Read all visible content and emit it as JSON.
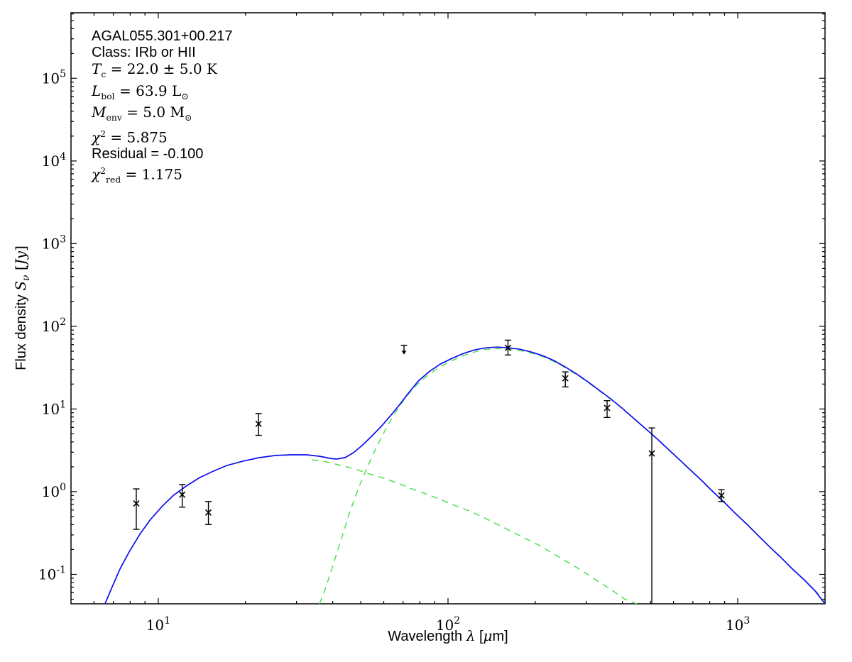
{
  "chart_data": {
    "type": "line",
    "title": "",
    "x_scale": "log",
    "y_scale": "log",
    "xlim": [
      5,
      2000
    ],
    "ylim": [
      0.044,
      620000
    ],
    "grid": false,
    "legend": "none",
    "annotation": {
      "lines": [
        {
          "text": "AGAL055.301+00.217",
          "style": "sans"
        },
        {
          "text": "Class: IRb or HII",
          "style": "sans"
        },
        {
          "text": "*T*_{c} = 22.0 ± 5.0 K",
          "style": "math"
        },
        {
          "text": "*L*_{bol} = 63.9 L_{⊙}",
          "style": "math"
        },
        {
          "text": "*M*_{env} = 5.0 M_{⊙}",
          "style": "math"
        },
        {
          "text": "*χ*^{2} = 5.875",
          "style": "math"
        },
        {
          "text": "Residual = -0.100",
          "style": "sans"
        },
        {
          "text": "*χ*^{2}_{red} = 1.175",
          "style": "math"
        }
      ]
    },
    "xlabel": {
      "text": "Wavelength λ [μm]",
      "parts": [
        {
          "t": "Wavelength ",
          "f": "sans"
        },
        {
          "t": "λ",
          "f": "it"
        },
        {
          "t": " [",
          "f": "sans"
        },
        {
          "t": "μ",
          "f": "it"
        },
        {
          "t": "m]",
          "f": "sans"
        }
      ]
    },
    "ylabel": {
      "text": "Flux density Sν [Jy]",
      "parts": [
        {
          "t": "Flux density ",
          "f": "sans"
        },
        {
          "t": "S",
          "f": "it"
        },
        {
          "t": "ν",
          "f": "it",
          "sub": true
        },
        {
          "t": " [",
          "f": "serif"
        },
        {
          "t": "Jy",
          "f": "it"
        },
        {
          "t": "]",
          "f": "serif"
        }
      ]
    },
    "x_ticks": [
      {
        "v": 10,
        "label": "10^{1}"
      },
      {
        "v": 100,
        "label": "10^{2}"
      },
      {
        "v": 1000,
        "label": "10^{3}"
      }
    ],
    "y_ticks": [
      {
        "v": 0.1,
        "label": "10^{-1}"
      },
      {
        "v": 1,
        "label": "10^{0}"
      },
      {
        "v": 10,
        "label": "10^{1}"
      },
      {
        "v": 100,
        "label": "10^{2}"
      },
      {
        "v": 1000,
        "label": "10^{3}"
      },
      {
        "v": 10000,
        "label": "10^{4}"
      },
      {
        "v": 100000,
        "label": "10^{5}"
      }
    ],
    "colors": {
      "model": "#0d0df0",
      "components": "#50e050",
      "data": "#000000"
    },
    "series": [
      {
        "name": "warm-component",
        "color": "#50e050",
        "style": "dashed",
        "points": [
          [
            34.0,
            2.43
          ],
          [
            38.1,
            2.29
          ],
          [
            42.7,
            2.08
          ],
          [
            47.8,
            1.88
          ],
          [
            53.5,
            1.64
          ],
          [
            59.9,
            1.46
          ],
          [
            67.0,
            1.27
          ],
          [
            75.0,
            1.08
          ],
          [
            83.9,
            0.943
          ],
          [
            94.0,
            0.805
          ],
          [
            105,
            0.687
          ],
          [
            118,
            0.587
          ],
          [
            132,
            0.492
          ],
          [
            148,
            0.403
          ],
          [
            165,
            0.331
          ],
          [
            185,
            0.272
          ],
          [
            207,
            0.223
          ],
          [
            232,
            0.176
          ],
          [
            260,
            0.139
          ],
          [
            291,
            0.11
          ],
          [
            325,
            0.085
          ],
          [
            364,
            0.066
          ],
          [
            408,
            0.05
          ],
          [
            448,
            0.044
          ]
        ]
      },
      {
        "name": "cold-component",
        "color": "#50e050",
        "style": "dashed",
        "points": [
          [
            36.0,
            0.044
          ],
          [
            37.3,
            0.06
          ],
          [
            38.8,
            0.09
          ],
          [
            40.5,
            0.145
          ],
          [
            42.2,
            0.228
          ],
          [
            43.9,
            0.351
          ],
          [
            45.6,
            0.543
          ],
          [
            47.8,
            0.854
          ],
          [
            50.0,
            1.29
          ],
          [
            52.6,
            1.96
          ],
          [
            55.6,
            3.02
          ],
          [
            58.8,
            4.48
          ],
          [
            62.6,
            6.78
          ],
          [
            66.6,
            9.67
          ],
          [
            71.7,
            14.1
          ],
          [
            77.2,
            18.9
          ],
          [
            83.9,
            24.5
          ],
          [
            91.9,
            31.0
          ],
          [
            102,
            37.7
          ],
          [
            113,
            44.2
          ],
          [
            125,
            49.7
          ],
          [
            136,
            52.8
          ],
          [
            149,
            53.8
          ],
          [
            163,
            52.8
          ],
          [
            179,
            50.7
          ],
          [
            196,
            46.9
          ],
          [
            214,
            42.5
          ],
          [
            234,
            37.0
          ],
          [
            257,
            31.0
          ],
          [
            281,
            25.4
          ],
          [
            307,
            20.5
          ],
          [
            336,
            16.2
          ],
          [
            368,
            12.8
          ],
          [
            403,
            9.86
          ],
          [
            441,
            7.48
          ],
          [
            483,
            5.68
          ],
          [
            528,
            4.31
          ],
          [
            578,
            3.2
          ],
          [
            633,
            2.38
          ],
          [
            692,
            1.77
          ],
          [
            758,
            1.32
          ],
          [
            829,
            0.961
          ],
          [
            908,
            0.715
          ],
          [
            994,
            0.522
          ],
          [
            1087,
            0.388
          ],
          [
            1190,
            0.283
          ],
          [
            1303,
            0.206
          ],
          [
            1426,
            0.153
          ],
          [
            1561,
            0.112
          ],
          [
            1708,
            0.083
          ],
          [
            1870,
            0.061
          ],
          [
            2004,
            0.044
          ]
        ]
      },
      {
        "name": "total-model",
        "color": "#0d0df0",
        "style": "solid",
        "points": [
          [
            6.55,
            0.044
          ],
          [
            6.94,
            0.071
          ],
          [
            7.42,
            0.121
          ],
          [
            7.99,
            0.194
          ],
          [
            8.64,
            0.306
          ],
          [
            9.41,
            0.463
          ],
          [
            10.3,
            0.661
          ],
          [
            11.3,
            0.906
          ],
          [
            12.5,
            1.17
          ],
          [
            13.9,
            1.48
          ],
          [
            15.5,
            1.77
          ],
          [
            17.3,
            2.08
          ],
          [
            19.6,
            2.34
          ],
          [
            22.3,
            2.58
          ],
          [
            25.4,
            2.74
          ],
          [
            28.7,
            2.79
          ],
          [
            32.5,
            2.79
          ],
          [
            36.0,
            2.68
          ],
          [
            39.2,
            2.53
          ],
          [
            41.2,
            2.48
          ],
          [
            44.1,
            2.58
          ],
          [
            47.2,
            2.96
          ],
          [
            50.8,
            3.68
          ],
          [
            54.7,
            4.75
          ],
          [
            58.8,
            6.14
          ],
          [
            63.3,
            8.26
          ],
          [
            68.1,
            11.3
          ],
          [
            73.3,
            15.8
          ],
          [
            78.9,
            21.7
          ],
          [
            85.9,
            28.1
          ],
          [
            94.0,
            34.9
          ],
          [
            103,
            40.8
          ],
          [
            113,
            46.9
          ],
          [
            123,
            51.7
          ],
          [
            135,
            54.9
          ],
          [
            148,
            56.0
          ],
          [
            162,
            54.9
          ],
          [
            177,
            52.8
          ],
          [
            194,
            48.8
          ],
          [
            212,
            44.2
          ],
          [
            232,
            38.5
          ],
          [
            254,
            32.2
          ],
          [
            278,
            26.5
          ],
          [
            304,
            21.3
          ],
          [
            333,
            16.8
          ],
          [
            364,
            13.3
          ],
          [
            398,
            10.3
          ],
          [
            436,
            7.79
          ],
          [
            477,
            5.91
          ],
          [
            522,
            4.48
          ],
          [
            572,
            3.33
          ],
          [
            626,
            2.48
          ],
          [
            685,
            1.84
          ],
          [
            750,
            1.37
          ],
          [
            820,
            1.0
          ],
          [
            898,
            0.744
          ],
          [
            982,
            0.543
          ],
          [
            1075,
            0.403
          ],
          [
            1177,
            0.294
          ],
          [
            1288,
            0.215
          ],
          [
            1410,
            0.16
          ],
          [
            1543,
            0.116
          ],
          [
            1689,
            0.087
          ],
          [
            1848,
            0.063
          ],
          [
            2000,
            0.044
          ]
        ]
      }
    ],
    "data_points": [
      {
        "lambda": 8.4,
        "flux": 0.72,
        "lo": 0.35,
        "hi": 1.08
      },
      {
        "lambda": 12.1,
        "flux": 0.92,
        "lo": 0.65,
        "hi": 1.22
      },
      {
        "lambda": 14.9,
        "flux": 0.56,
        "lo": 0.4,
        "hi": 0.76
      },
      {
        "lambda": 22.2,
        "flux": 6.6,
        "lo": 4.8,
        "hi": 8.8
      },
      {
        "lambda": 70.5,
        "flux": 59,
        "upper_limit": true,
        "arrow_to": 46
      },
      {
        "lambda": 161,
        "flux": 55,
        "lo": 45,
        "hi": 68
      },
      {
        "lambda": 254,
        "flux": 23.5,
        "lo": 18.5,
        "hi": 28.1
      },
      {
        "lambda": 354,
        "flux": 10.3,
        "lo": 7.9,
        "hi": 12.6
      },
      {
        "lambda": 505,
        "flux": 2.9,
        "lo": null,
        "hi": 5.9
      },
      {
        "lambda": 878,
        "flux": 0.9,
        "lo": 0.76,
        "hi": 1.06
      }
    ]
  }
}
